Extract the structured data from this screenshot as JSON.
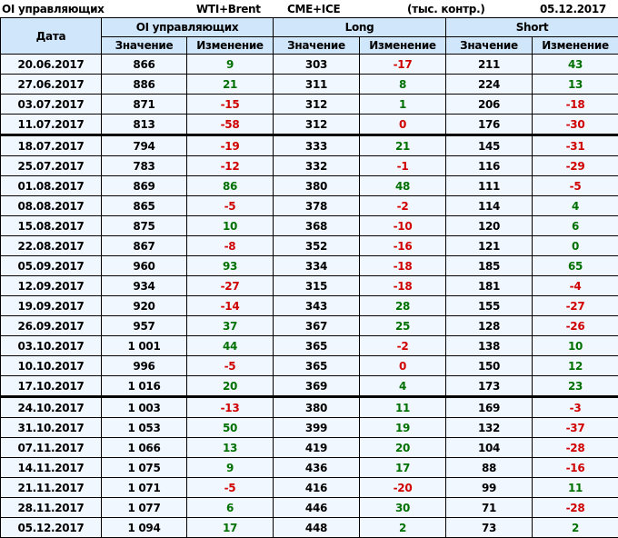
{
  "top_bar": {
    "title": "OI управляющих",
    "instrument": "WTI+Brent",
    "exchange": "CME+ICE",
    "units": "(тыс. контр.)",
    "date": "05.12.2017"
  },
  "colors": {
    "positive": "#007000",
    "negative": "#d00000",
    "header_bg": "#cfe6fb",
    "cell_bg": "#f0f7ff"
  },
  "chart_data": {
    "type": "table",
    "headers": {
      "date": "Дата",
      "groups": [
        "OI управляющих",
        "Long",
        "Short"
      ],
      "sub": [
        "Значение",
        "Изменение",
        "Значение",
        "Изменение",
        "Значение",
        "Изменение"
      ]
    },
    "rows": [
      {
        "date": "20.06.2017",
        "oi": "866",
        "oi_ch": "9",
        "oi_c": "pos",
        "l": "303",
        "l_ch": "-17",
        "l_c": "neg",
        "s": "211",
        "s_ch": "43",
        "s_c": "pos"
      },
      {
        "date": "27.06.2017",
        "oi": "886",
        "oi_ch": "21",
        "oi_c": "pos",
        "l": "311",
        "l_ch": "8",
        "l_c": "pos",
        "s": "224",
        "s_ch": "13",
        "s_c": "pos"
      },
      {
        "date": "03.07.2017",
        "oi": "871",
        "oi_ch": "-15",
        "oi_c": "neg",
        "l": "312",
        "l_ch": "1",
        "l_c": "pos",
        "s": "206",
        "s_ch": "-18",
        "s_c": "neg"
      },
      {
        "date": "11.07.2017",
        "oi": "813",
        "oi_ch": "-58",
        "oi_c": "neg",
        "l": "312",
        "l_ch": "0",
        "l_c": "neg",
        "s": "176",
        "s_ch": "-30",
        "s_c": "neg",
        "sep": true
      },
      {
        "date": "18.07.2017",
        "oi": "794",
        "oi_ch": "-19",
        "oi_c": "neg",
        "l": "333",
        "l_ch": "21",
        "l_c": "pos",
        "s": "145",
        "s_ch": "-31",
        "s_c": "neg"
      },
      {
        "date": "25.07.2017",
        "oi": "783",
        "oi_ch": "-12",
        "oi_c": "neg",
        "l": "332",
        "l_ch": "-1",
        "l_c": "neg",
        "s": "116",
        "s_ch": "-29",
        "s_c": "neg"
      },
      {
        "date": "01.08.2017",
        "oi": "869",
        "oi_ch": "86",
        "oi_c": "pos",
        "l": "380",
        "l_ch": "48",
        "l_c": "pos",
        "s": "111",
        "s_ch": "-5",
        "s_c": "neg"
      },
      {
        "date": "08.08.2017",
        "oi": "865",
        "oi_ch": "-5",
        "oi_c": "neg",
        "l": "378",
        "l_ch": "-2",
        "l_c": "neg",
        "s": "114",
        "s_ch": "4",
        "s_c": "pos"
      },
      {
        "date": "15.08.2017",
        "oi": "875",
        "oi_ch": "10",
        "oi_c": "pos",
        "l": "368",
        "l_ch": "-10",
        "l_c": "neg",
        "s": "120",
        "s_ch": "6",
        "s_c": "pos"
      },
      {
        "date": "22.08.2017",
        "oi": "867",
        "oi_ch": "-8",
        "oi_c": "neg",
        "l": "352",
        "l_ch": "-16",
        "l_c": "neg",
        "s": "121",
        "s_ch": "0",
        "s_c": "pos"
      },
      {
        "date": "05.09.2017",
        "oi": "960",
        "oi_ch": "93",
        "oi_c": "pos",
        "l": "334",
        "l_ch": "-18",
        "l_c": "neg",
        "s": "185",
        "s_ch": "65",
        "s_c": "pos"
      },
      {
        "date": "12.09.2017",
        "oi": "934",
        "oi_ch": "-27",
        "oi_c": "neg",
        "l": "315",
        "l_ch": "-18",
        "l_c": "neg",
        "s": "181",
        "s_ch": "-4",
        "s_c": "neg"
      },
      {
        "date": "19.09.2017",
        "oi": "920",
        "oi_ch": "-14",
        "oi_c": "neg",
        "l": "343",
        "l_ch": "28",
        "l_c": "pos",
        "s": "155",
        "s_ch": "-27",
        "s_c": "neg"
      },
      {
        "date": "26.09.2017",
        "oi": "957",
        "oi_ch": "37",
        "oi_c": "pos",
        "l": "367",
        "l_ch": "25",
        "l_c": "pos",
        "s": "128",
        "s_ch": "-26",
        "s_c": "neg"
      },
      {
        "date": "03.10.2017",
        "oi": "1 001",
        "oi_ch": "44",
        "oi_c": "pos",
        "l": "365",
        "l_ch": "-2",
        "l_c": "neg",
        "s": "138",
        "s_ch": "10",
        "s_c": "pos"
      },
      {
        "date": "10.10.2017",
        "oi": "996",
        "oi_ch": "-5",
        "oi_c": "neg",
        "l": "365",
        "l_ch": "0",
        "l_c": "neg",
        "s": "150",
        "s_ch": "12",
        "s_c": "pos"
      },
      {
        "date": "17.10.2017",
        "oi": "1 016",
        "oi_ch": "20",
        "oi_c": "pos",
        "l": "369",
        "l_ch": "4",
        "l_c": "pos",
        "s": "173",
        "s_ch": "23",
        "s_c": "pos",
        "sep": true
      },
      {
        "date": "24.10.2017",
        "oi": "1 003",
        "oi_ch": "-13",
        "oi_c": "neg",
        "l": "380",
        "l_ch": "11",
        "l_c": "pos",
        "s": "169",
        "s_ch": "-3",
        "s_c": "neg"
      },
      {
        "date": "31.10.2017",
        "oi": "1 053",
        "oi_ch": "50",
        "oi_c": "pos",
        "l": "399",
        "l_ch": "19",
        "l_c": "pos",
        "s": "132",
        "s_ch": "-37",
        "s_c": "neg"
      },
      {
        "date": "07.11.2017",
        "oi": "1 066",
        "oi_ch": "13",
        "oi_c": "pos",
        "l": "419",
        "l_ch": "20",
        "l_c": "pos",
        "s": "104",
        "s_ch": "-28",
        "s_c": "neg"
      },
      {
        "date": "14.11.2017",
        "oi": "1 075",
        "oi_ch": "9",
        "oi_c": "pos",
        "l": "436",
        "l_ch": "17",
        "l_c": "pos",
        "s": "88",
        "s_ch": "-16",
        "s_c": "neg"
      },
      {
        "date": "21.11.2017",
        "oi": "1 071",
        "oi_ch": "-5",
        "oi_c": "neg",
        "l": "416",
        "l_ch": "-20",
        "l_c": "neg",
        "s": "99",
        "s_ch": "11",
        "s_c": "pos"
      },
      {
        "date": "28.11.2017",
        "oi": "1 077",
        "oi_ch": "6",
        "oi_c": "pos",
        "l": "446",
        "l_ch": "30",
        "l_c": "pos",
        "s": "71",
        "s_ch": "-28",
        "s_c": "neg"
      },
      {
        "date": "05.12.2017",
        "oi": "1 094",
        "oi_ch": "17",
        "oi_c": "pos",
        "l": "448",
        "l_ch": "2",
        "l_c": "pos",
        "s": "73",
        "s_ch": "2",
        "s_c": "pos"
      }
    ]
  }
}
